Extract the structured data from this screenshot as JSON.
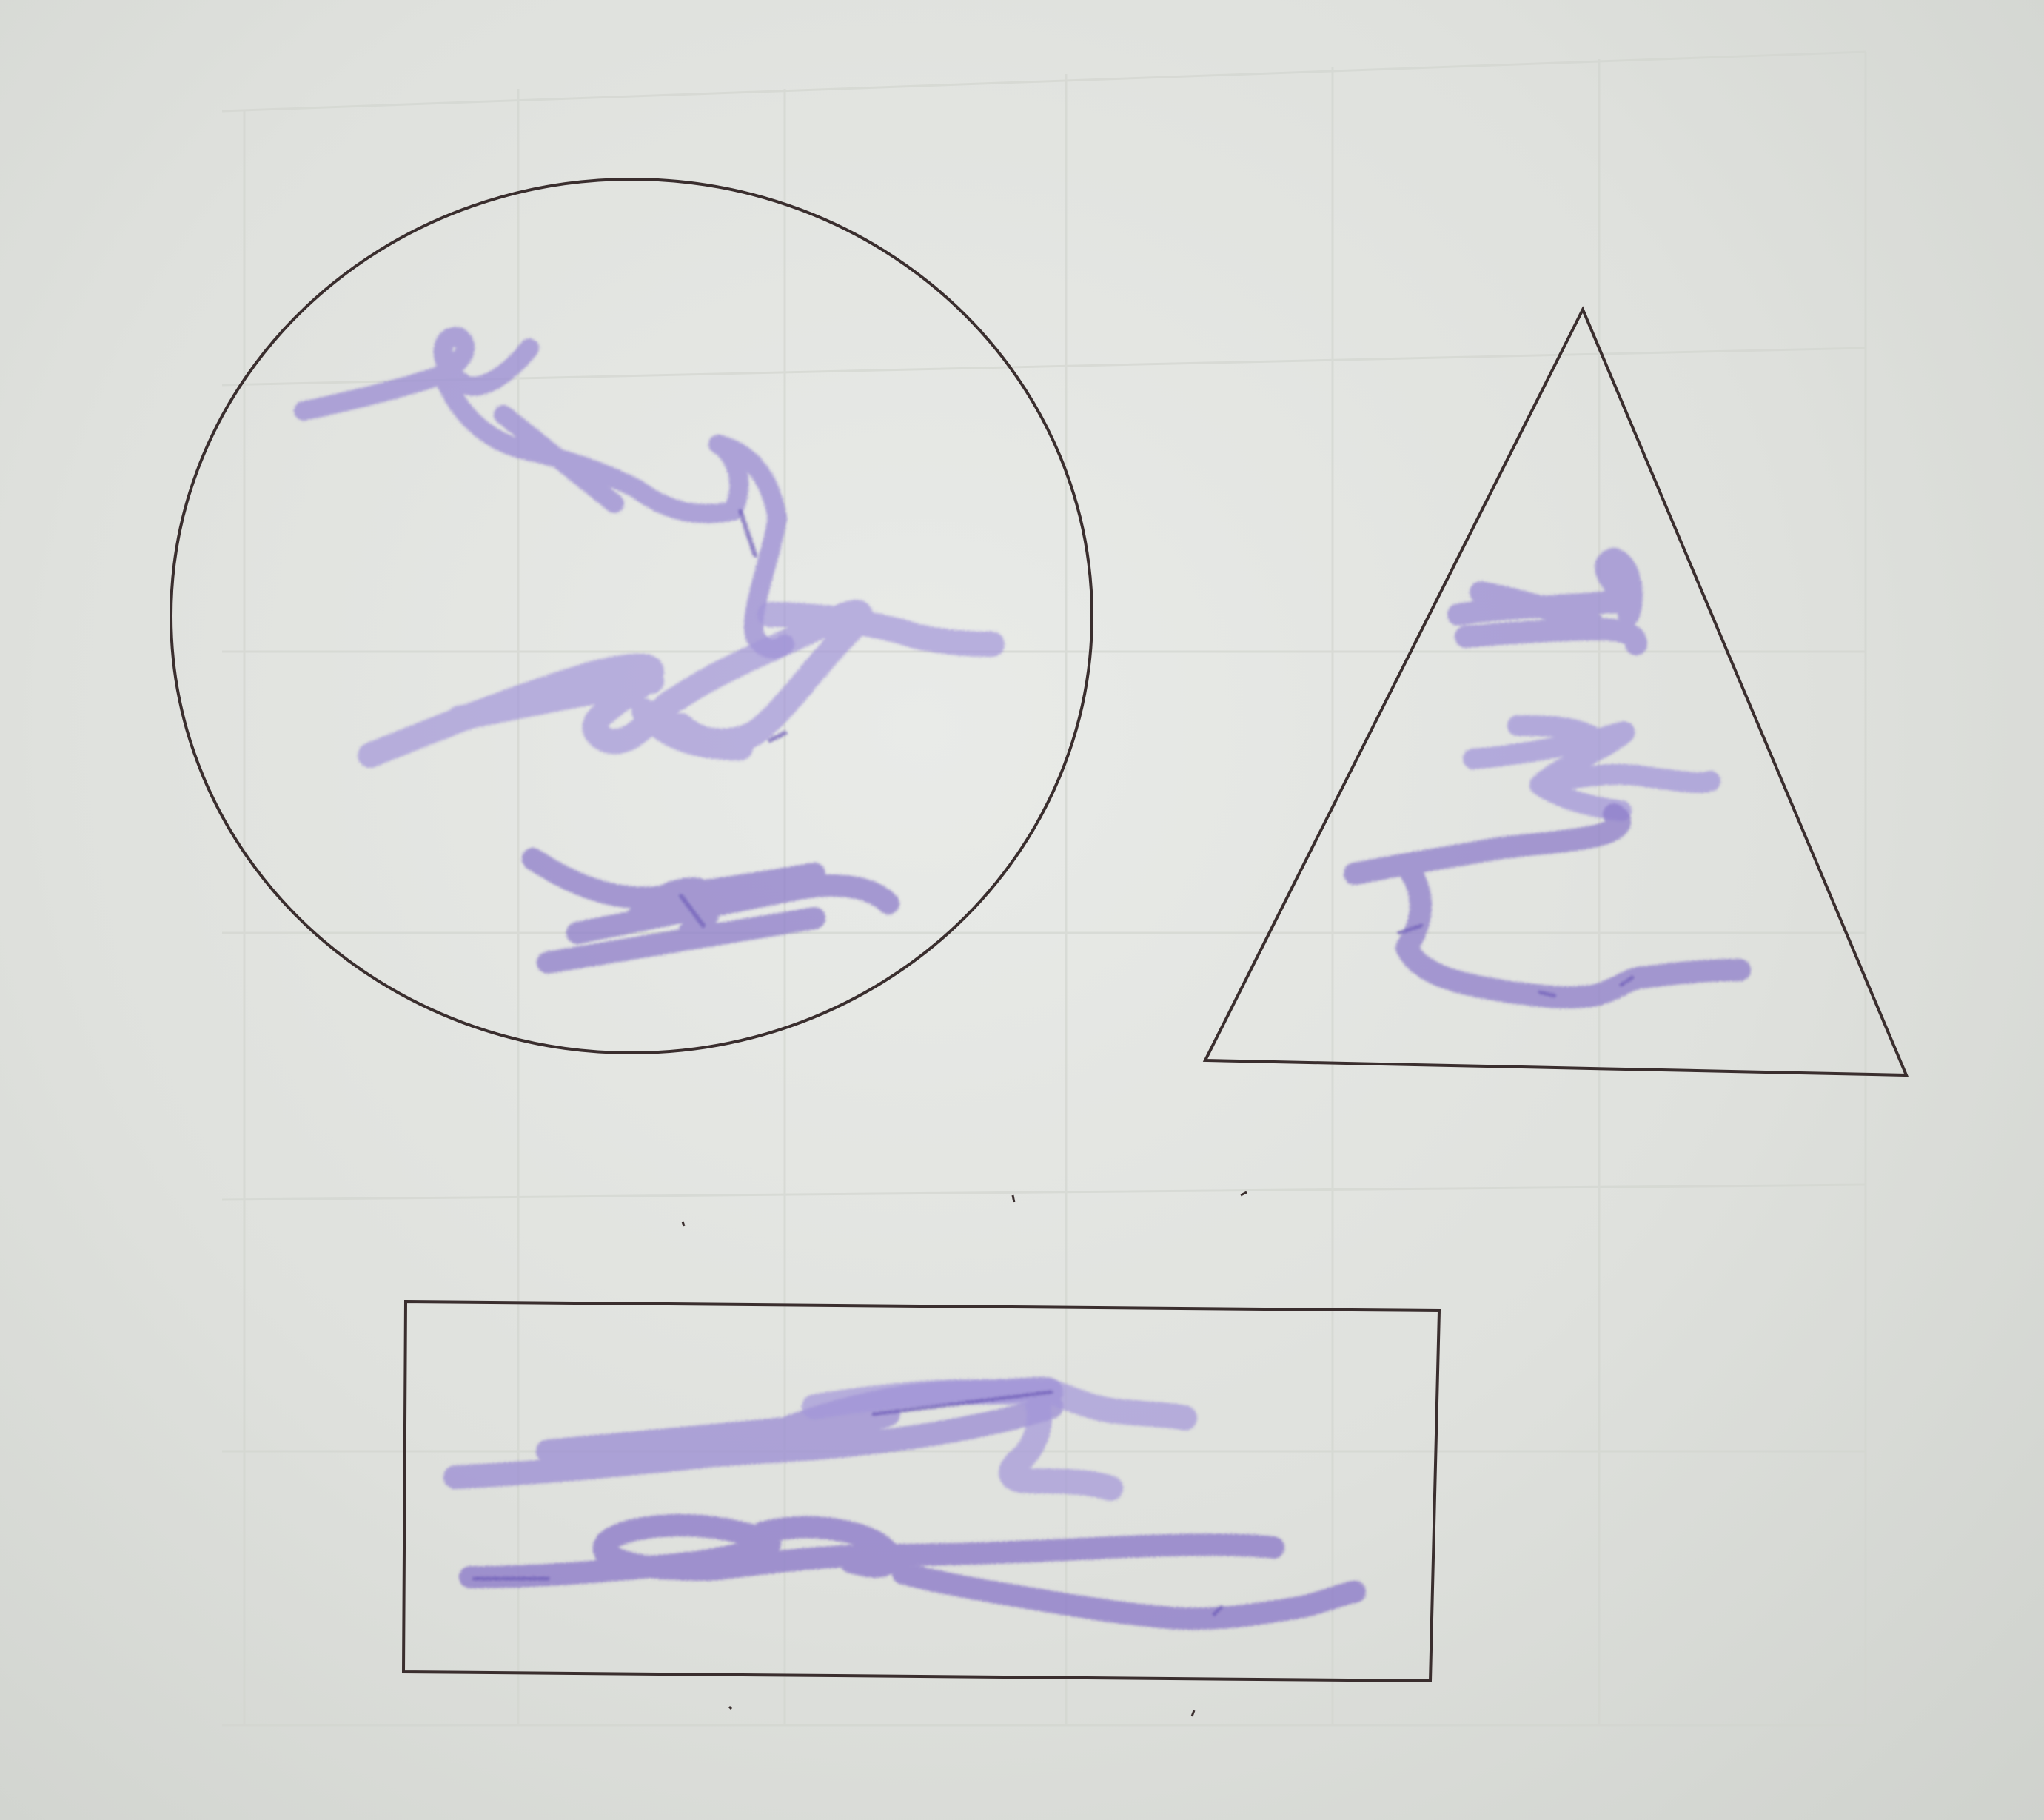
{
  "scene": {
    "subject": "paper-worksheet-photo",
    "paper_color": "#e4e6e2",
    "grid_color": "#d2d5cf",
    "outline_color": "#3a2e2e",
    "crayon_color": "#8f7fcf",
    "crayon_dark": "#6e5cb8"
  },
  "shapes": [
    {
      "kind": "circle",
      "label": "circle-outline"
    },
    {
      "kind": "triangle",
      "label": "triangle-outline"
    },
    {
      "kind": "rectangle",
      "label": "rectangle-outline"
    }
  ]
}
